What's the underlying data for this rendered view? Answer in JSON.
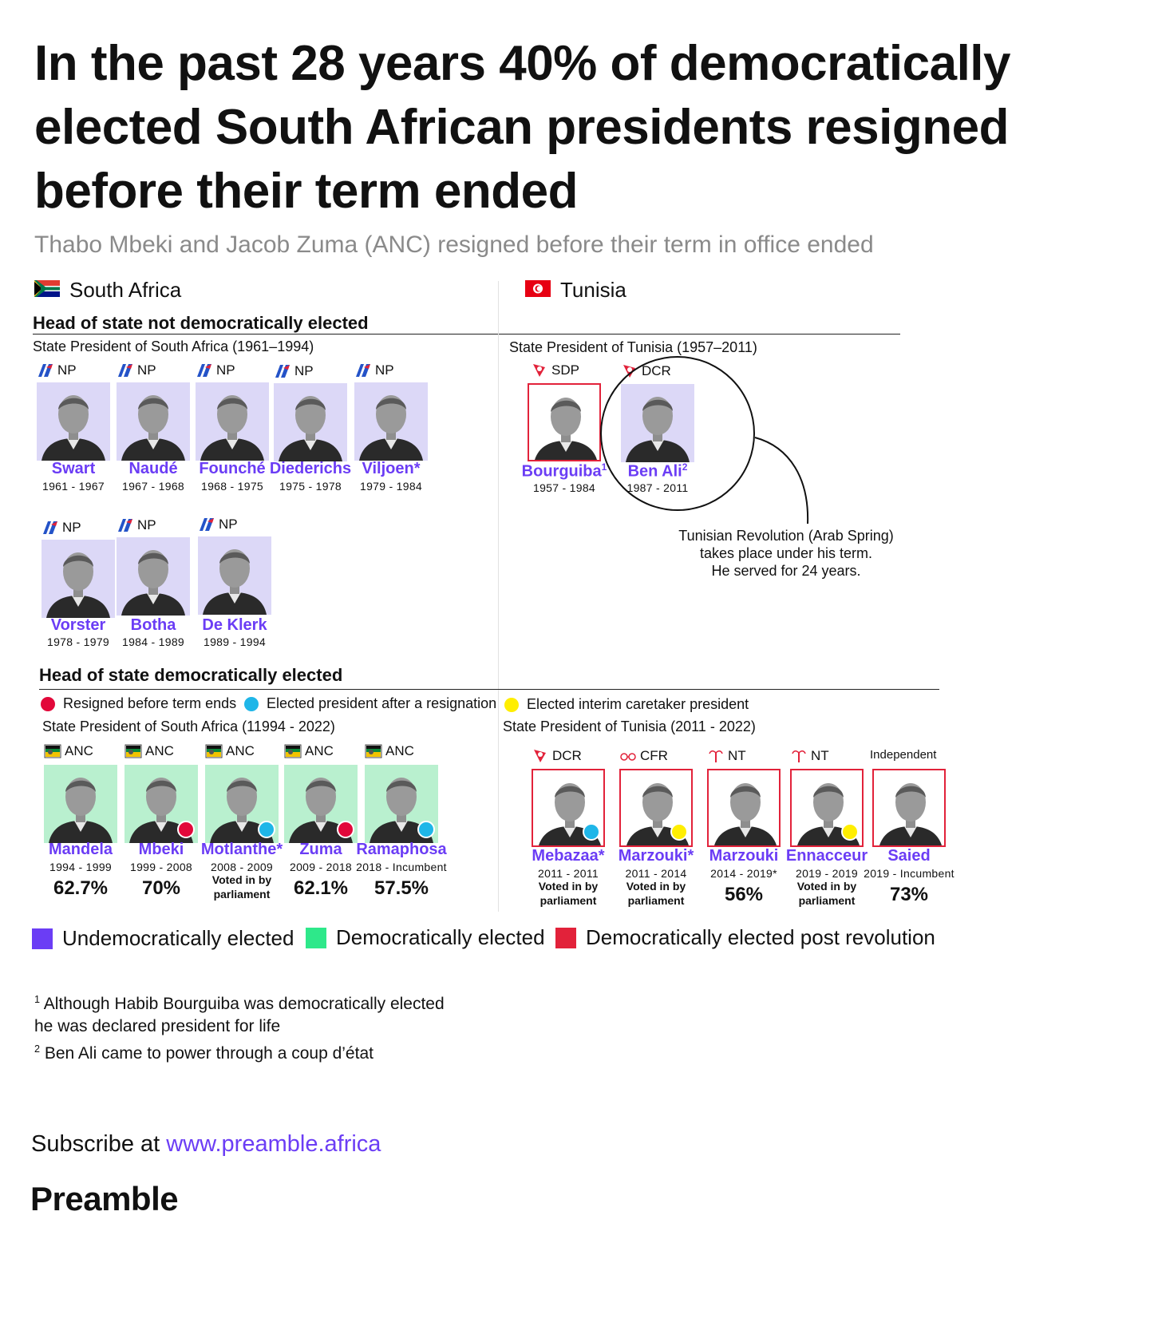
{
  "title": "In the past 28 years 40% of democratically elected South African presidents resigned before their term ended",
  "subtitle": "Thabo Mbeki and Jacob Zuma (ANC) resigned before their term in office ended",
  "countries": {
    "south_africa": "South Africa",
    "tunisia": "Tunisia"
  },
  "sections": {
    "undemocratic": "Head of state not democratically elected",
    "democratic": "Head of state democratically elected"
  },
  "subheads": {
    "sa_old": "State President of South Africa (1961–1994)",
    "tn_old": "State President of Tunisia (1957–2011)",
    "sa_new": "State President of South Africa (11994 - 2022)",
    "tn_new": "State President of Tunisia (2011 - 2022)"
  },
  "key": {
    "resigned": "Resigned before term ends",
    "after_resignation": "Elected president after a resignation",
    "interim": "Elected interim caretaker president"
  },
  "colors": {
    "purple": "#6b3df5",
    "green": "#2ee88a",
    "red": "#e2223a",
    "dot_red": "#e2083a",
    "dot_blue": "#1fb6e8",
    "dot_yellow": "#ffee00"
  },
  "sa_old": [
    {
      "party": "NP",
      "name": "Swart",
      "years": "1961 - 1967"
    },
    {
      "party": "NP",
      "name": "Naudé",
      "years": "1967 - 1968"
    },
    {
      "party": "NP",
      "name": "Founché",
      "years": "1968 - 1975"
    },
    {
      "party": "NP",
      "name": "Diederichs",
      "years": "1975 - 1978"
    },
    {
      "party": "NP",
      "name": "Viljoen*",
      "years": "1979 - 1984"
    },
    {
      "party": "NP",
      "name": "Vorster",
      "years": "1978 - 1979"
    },
    {
      "party": "NP",
      "name": "Botha",
      "years": "1984 - 1989"
    },
    {
      "party": "NP",
      "name": "De Klerk",
      "years": "1989 - 1994"
    }
  ],
  "tn_old": [
    {
      "party": "SDP",
      "name": "Bourguiba",
      "sup": "1",
      "years": "1957 - 1984"
    },
    {
      "party": "DCR",
      "name": "Ben Ali",
      "sup": "2",
      "years": "1987 - 2011"
    }
  ],
  "annotation": "Tunisian Revolution (Arab Spring) takes place under his term. He served for 24 years.",
  "annotation_lines": [
    "Tunisian Revolution (Arab Spring)",
    "takes place under his term.",
    "He served for 24 years."
  ],
  "sa_new": [
    {
      "party": "ANC",
      "name": "Mandela",
      "years": "1994 - 1999",
      "vote": "62.7%"
    },
    {
      "party": "ANC",
      "name": "Mbeki",
      "years": "1999 - 2008",
      "vote": "70%",
      "dot": "resigned"
    },
    {
      "party": "ANC",
      "name": "Motlanthe*",
      "years": "2008 - 2009",
      "vote": "Voted in by parliament",
      "dot": "after_resignation"
    },
    {
      "party": "ANC",
      "name": "Zuma",
      "years": "2009 - 2018",
      "vote": "62.1%",
      "dot": "resigned"
    },
    {
      "party": "ANC",
      "name": "Ramaphosa",
      "years": "2018 - Incumbent",
      "vote": "57.5%",
      "dot": "after_resignation"
    }
  ],
  "tn_new": [
    {
      "party": "DCR",
      "name": "Mebazaa*",
      "years": "2011 - 2011",
      "vote": "Voted in by parliament",
      "dot": "after_resignation"
    },
    {
      "party": "CFR",
      "name": "Marzouki*",
      "years": "2011 - 2014",
      "vote": "Voted in by parliament",
      "dot": "interim"
    },
    {
      "party": "NT",
      "name": "Marzouki",
      "years": "2014 - 2019*",
      "vote": "56%"
    },
    {
      "party": "NT",
      "name": "Ennacceur",
      "years": "2019 - 2019",
      "vote": "Voted in by parliament",
      "dot": "interim"
    },
    {
      "party": "Independent",
      "name": "Saied",
      "years": "2019 - Incumbent",
      "vote": "73%"
    }
  ],
  "legend": {
    "undemocratic": "Undemocratically elected",
    "democratic": "Democratically elected",
    "post_revolution": "Democratically elected post revolution"
  },
  "footnotes": {
    "n1_line1": "Although Habib Bourguiba was democratically elected",
    "n1_line2": "he was declared president for life",
    "n2": "Ben Ali came to power through a coup d’état"
  },
  "subscribe": {
    "prefix": "Subscribe at ",
    "url": "www.preamble.africa"
  },
  "brand": "Preamble"
}
